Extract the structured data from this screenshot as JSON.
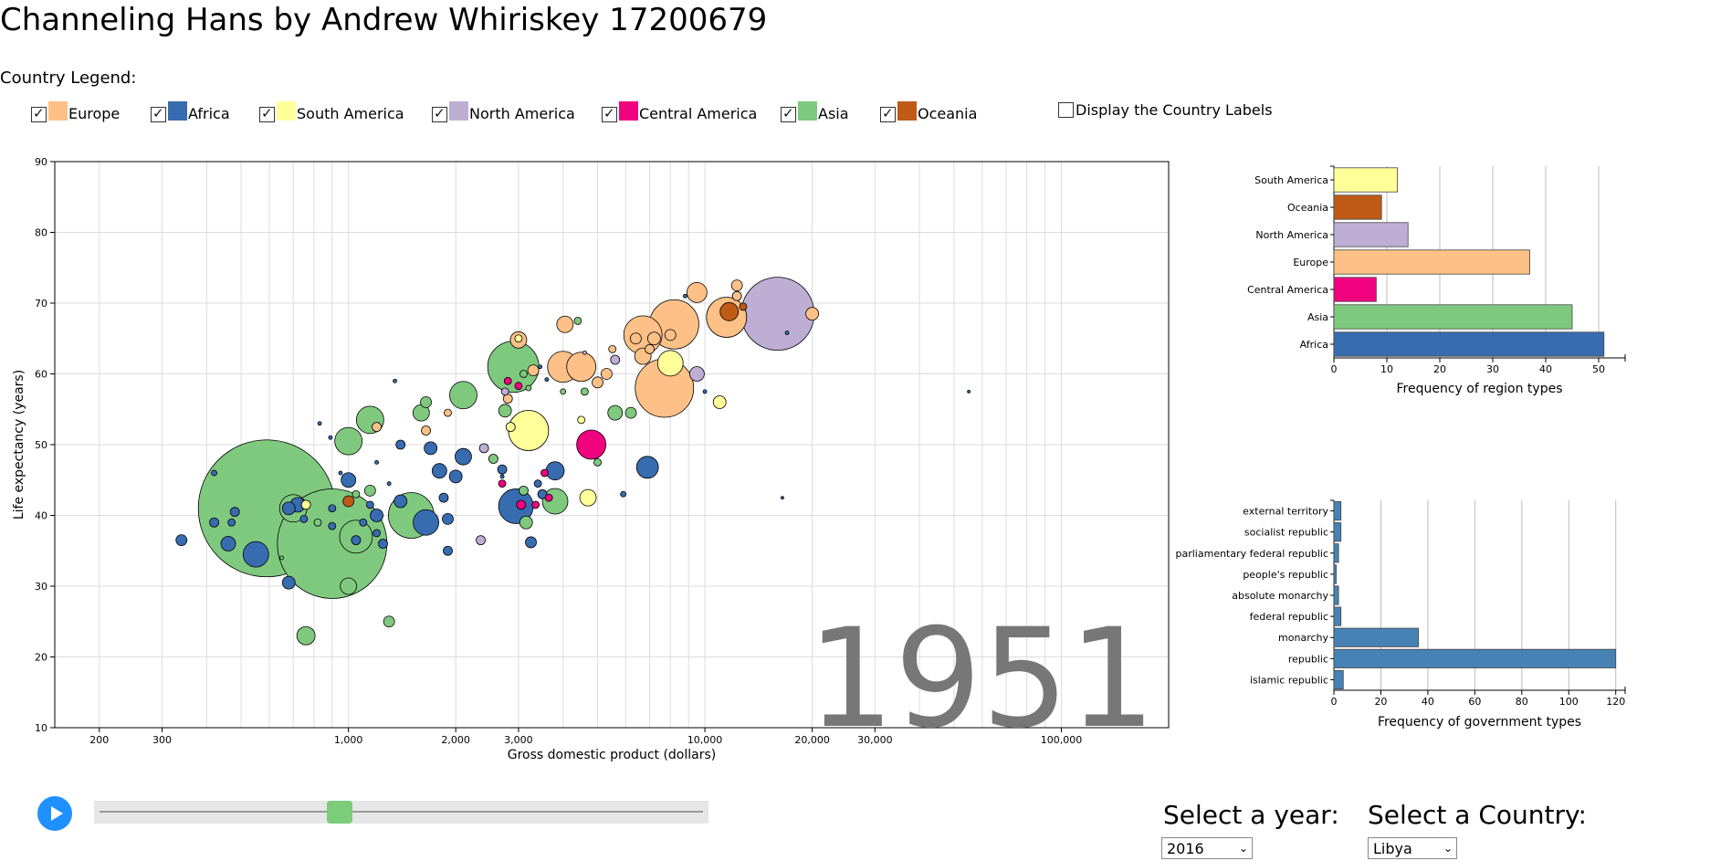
{
  "page": {
    "title": "Channeling Hans by Andrew Whiriskey 17200679",
    "legend_title": "Country Legend:",
    "labels_toggle": "Display the Country Labels",
    "labels_toggle_checked": false
  },
  "legend": [
    {
      "label": "Europe",
      "color": "#fdc086",
      "checked": true
    },
    {
      "label": "Africa",
      "color": "#386cb0",
      "checked": true
    },
    {
      "label": "South America",
      "color": "#ffff99",
      "checked": true
    },
    {
      "label": "North America",
      "color": "#beaed4",
      "checked": true
    },
    {
      "label": "Central America",
      "color": "#f0027f",
      "checked": true
    },
    {
      "label": "Asia",
      "color": "#7fc97f",
      "checked": true
    },
    {
      "label": "Oceania",
      "color": "#bf5b17",
      "checked": true
    }
  ],
  "controls": {
    "year_label": "Select a year:",
    "year_value": "2016",
    "country_label": "Select a Country:",
    "country_value": "Libya",
    "slider_position": 0.4
  },
  "chart_data": [
    {
      "type": "scatter",
      "title": "",
      "year_watermark": "1951",
      "xlabel": "Gross domestic product (dollars)",
      "ylabel": "Life expectancy (years)",
      "xscale": "log",
      "xlim": [
        150,
        200000
      ],
      "ylim": [
        10,
        90
      ],
      "xticks": [
        200,
        300,
        1000,
        2000,
        3000,
        10000,
        20000,
        30000,
        100000
      ],
      "xtick_labels": [
        "200",
        "300",
        "1,000",
        "2,000",
        "3,000",
        "10,000",
        "20,000",
        "30,000",
        "100,000"
      ],
      "yticks": [
        10,
        20,
        30,
        40,
        50,
        60,
        70,
        80,
        90
      ],
      "grid": true,
      "points": [
        {
          "x": 590,
          "y": 41,
          "r": 75,
          "region": "Asia"
        },
        {
          "x": 900,
          "y": 36,
          "r": 60,
          "region": "Asia"
        },
        {
          "x": 16000,
          "y": 68.5,
          "r": 40,
          "region": "North America"
        },
        {
          "x": 7700,
          "y": 58,
          "r": 32,
          "region": "Europe"
        },
        {
          "x": 2900,
          "y": 61,
          "r": 28,
          "region": "Asia"
        },
        {
          "x": 8200,
          "y": 67,
          "r": 27,
          "region": "Europe"
        },
        {
          "x": 1500,
          "y": 40,
          "r": 25,
          "region": "Asia"
        },
        {
          "x": 11500,
          "y": 68,
          "r": 22,
          "region": "Europe"
        },
        {
          "x": 3200,
          "y": 52,
          "r": 22,
          "region": "South America"
        },
        {
          "x": 6700,
          "y": 65.5,
          "r": 21,
          "region": "Europe"
        },
        {
          "x": 2950,
          "y": 41.3,
          "r": 19,
          "region": "Africa"
        },
        {
          "x": 4000,
          "y": 61,
          "r": 17,
          "region": "Europe"
        },
        {
          "x": 4500,
          "y": 61,
          "r": 16,
          "region": "Europe"
        },
        {
          "x": 4800,
          "y": 50,
          "r": 16,
          "region": "Central America"
        },
        {
          "x": 1050,
          "y": 37,
          "r": 18,
          "region": "Asia"
        },
        {
          "x": 1650,
          "y": 39,
          "r": 14,
          "region": "Africa"
        },
        {
          "x": 3800,
          "y": 42,
          "r": 14,
          "region": "Asia"
        },
        {
          "x": 1000,
          "y": 50.5,
          "r": 15,
          "region": "Asia"
        },
        {
          "x": 1150,
          "y": 53.5,
          "r": 15,
          "region": "Asia"
        },
        {
          "x": 2100,
          "y": 57,
          "r": 15,
          "region": "Asia"
        },
        {
          "x": 700,
          "y": 41,
          "r": 15,
          "region": "Asia"
        },
        {
          "x": 8000,
          "y": 61.5,
          "r": 14,
          "region": "South America"
        },
        {
          "x": 550,
          "y": 34.5,
          "r": 14,
          "region": "Africa"
        },
        {
          "x": 6900,
          "y": 46.8,
          "r": 12,
          "region": "Africa"
        },
        {
          "x": 9500,
          "y": 71.5,
          "r": 11,
          "region": "Europe"
        },
        {
          "x": 11700,
          "y": 68.8,
          "r": 10,
          "region": "Oceania"
        },
        {
          "x": 3000,
          "y": 64.8,
          "r": 9,
          "region": "Europe"
        },
        {
          "x": 4050,
          "y": 67,
          "r": 9,
          "region": "Europe"
        },
        {
          "x": 6700,
          "y": 62.5,
          "r": 9,
          "region": "Europe"
        },
        {
          "x": 3800,
          "y": 46.3,
          "r": 10,
          "region": "Africa"
        },
        {
          "x": 2100,
          "y": 48.3,
          "r": 9,
          "region": "Africa"
        },
        {
          "x": 1800,
          "y": 46.3,
          "r": 8,
          "region": "Africa"
        },
        {
          "x": 1000,
          "y": 30,
          "r": 9,
          "region": "Asia"
        },
        {
          "x": 760,
          "y": 23,
          "r": 10,
          "region": "Asia"
        },
        {
          "x": 460,
          "y": 36,
          "r": 8,
          "region": "Africa"
        },
        {
          "x": 9500,
          "y": 60,
          "r": 8,
          "region": "North America"
        },
        {
          "x": 20000,
          "y": 68.5,
          "r": 7,
          "region": "Europe"
        },
        {
          "x": 4700,
          "y": 42.5,
          "r": 9,
          "region": "South America"
        },
        {
          "x": 11000,
          "y": 56,
          "r": 7,
          "region": "South America"
        },
        {
          "x": 5600,
          "y": 54.5,
          "r": 8,
          "region": "Asia"
        },
        {
          "x": 2750,
          "y": 54.8,
          "r": 7,
          "region": "Asia"
        },
        {
          "x": 3150,
          "y": 39,
          "r": 7,
          "region": "Asia"
        },
        {
          "x": 3250,
          "y": 36.2,
          "r": 6,
          "region": "Africa"
        },
        {
          "x": 1400,
          "y": 42,
          "r": 7,
          "region": "Africa"
        },
        {
          "x": 1000,
          "y": 45,
          "r": 8,
          "region": "Africa"
        },
        {
          "x": 1200,
          "y": 40,
          "r": 7,
          "region": "Africa"
        },
        {
          "x": 1700,
          "y": 49.5,
          "r": 7,
          "region": "Africa"
        },
        {
          "x": 2000,
          "y": 45.5,
          "r": 7,
          "region": "Africa"
        },
        {
          "x": 340,
          "y": 36.5,
          "r": 6,
          "region": "Africa"
        },
        {
          "x": 680,
          "y": 30.5,
          "r": 7,
          "region": "Africa"
        },
        {
          "x": 1300,
          "y": 25,
          "r": 6,
          "region": "Asia"
        },
        {
          "x": 2350,
          "y": 36.5,
          "r": 5,
          "region": "North America"
        },
        {
          "x": 2550,
          "y": 48,
          "r": 5,
          "region": "Asia"
        },
        {
          "x": 1400,
          "y": 50,
          "r": 5,
          "region": "Africa"
        },
        {
          "x": 1900,
          "y": 39.5,
          "r": 6,
          "region": "Africa"
        },
        {
          "x": 1850,
          "y": 42.5,
          "r": 5,
          "region": "Africa"
        },
        {
          "x": 1150,
          "y": 43.5,
          "r": 6,
          "region": "Asia"
        },
        {
          "x": 1900,
          "y": 35,
          "r": 5,
          "region": "Africa"
        },
        {
          "x": 2700,
          "y": 46.5,
          "r": 5,
          "region": "Africa"
        },
        {
          "x": 2850,
          "y": 52.5,
          "r": 5,
          "region": "South America"
        },
        {
          "x": 3300,
          "y": 60.5,
          "r": 6,
          "region": "Europe"
        },
        {
          "x": 5000,
          "y": 58.8,
          "r": 6,
          "region": "Europe"
        },
        {
          "x": 5300,
          "y": 60,
          "r": 6,
          "region": "Europe"
        },
        {
          "x": 5600,
          "y": 62,
          "r": 5,
          "region": "North America"
        },
        {
          "x": 6200,
          "y": 54.5,
          "r": 6,
          "region": "Asia"
        },
        {
          "x": 2400,
          "y": 49.5,
          "r": 5,
          "region": "North America"
        },
        {
          "x": 1600,
          "y": 54.5,
          "r": 9,
          "region": "Asia"
        },
        {
          "x": 1650,
          "y": 56,
          "r": 6,
          "region": "Asia"
        },
        {
          "x": 1900,
          "y": 54.5,
          "r": 4,
          "region": "Europe"
        },
        {
          "x": 1200,
          "y": 52.5,
          "r": 5,
          "region": "Europe"
        },
        {
          "x": 1650,
          "y": 52,
          "r": 5,
          "region": "Europe"
        },
        {
          "x": 2800,
          "y": 56.5,
          "r": 5,
          "region": "Europe"
        },
        {
          "x": 3100,
          "y": 43.5,
          "r": 5,
          "region": "Asia"
        },
        {
          "x": 3500,
          "y": 43,
          "r": 5,
          "region": "Africa"
        },
        {
          "x": 3650,
          "y": 42.5,
          "r": 4,
          "region": "Central America"
        },
        {
          "x": 3400,
          "y": 44.5,
          "r": 4,
          "region": "Africa"
        },
        {
          "x": 3550,
          "y": 46,
          "r": 4,
          "region": "Central America"
        },
        {
          "x": 3350,
          "y": 41.5,
          "r": 4,
          "region": "Central America"
        },
        {
          "x": 3050,
          "y": 41.5,
          "r": 5,
          "region": "Central America"
        },
        {
          "x": 3000,
          "y": 58.3,
          "r": 4,
          "region": "Central America"
        },
        {
          "x": 2800,
          "y": 59,
          "r": 4,
          "region": "Central America"
        },
        {
          "x": 2750,
          "y": 57.5,
          "r": 4,
          "region": "North America"
        },
        {
          "x": 2700,
          "y": 44.5,
          "r": 4,
          "region": "Central America"
        },
        {
          "x": 3000,
          "y": 65,
          "r": 4,
          "region": "South America"
        },
        {
          "x": 3100,
          "y": 60,
          "r": 4,
          "region": "Asia"
        },
        {
          "x": 3200,
          "y": 58,
          "r": 3,
          "region": "Asia"
        },
        {
          "x": 4600,
          "y": 57.5,
          "r": 4,
          "region": "Asia"
        },
        {
          "x": 4500,
          "y": 53.5,
          "r": 4,
          "region": "South America"
        },
        {
          "x": 5000,
          "y": 47.5,
          "r": 4,
          "region": "Asia"
        },
        {
          "x": 5500,
          "y": 63.5,
          "r": 4,
          "region": "Europe"
        },
        {
          "x": 4400,
          "y": 67.5,
          "r": 4,
          "region": "Asia"
        },
        {
          "x": 4000,
          "y": 57.5,
          "r": 3,
          "region": "Asia"
        },
        {
          "x": 5900,
          "y": 43,
          "r": 3,
          "region": "Africa"
        },
        {
          "x": 1000,
          "y": 42,
          "r": 6,
          "region": "Oceania"
        },
        {
          "x": 900,
          "y": 41,
          "r": 4,
          "region": "Africa"
        },
        {
          "x": 820,
          "y": 39,
          "r": 4,
          "region": "Asia"
        },
        {
          "x": 760,
          "y": 41.5,
          "r": 5,
          "region": "South America"
        },
        {
          "x": 680,
          "y": 41,
          "r": 7,
          "region": "Africa"
        },
        {
          "x": 720,
          "y": 41.5,
          "r": 8,
          "region": "Africa"
        },
        {
          "x": 470,
          "y": 39,
          "r": 4,
          "region": "Africa"
        },
        {
          "x": 480,
          "y": 40.5,
          "r": 5,
          "region": "Africa"
        },
        {
          "x": 420,
          "y": 39,
          "r": 5,
          "region": "Africa"
        },
        {
          "x": 750,
          "y": 39.5,
          "r": 4,
          "region": "Africa"
        },
        {
          "x": 900,
          "y": 38.5,
          "r": 4,
          "region": "Africa"
        },
        {
          "x": 1100,
          "y": 39,
          "r": 4,
          "region": "Africa"
        },
        {
          "x": 1200,
          "y": 37.5,
          "r": 4,
          "region": "Africa"
        },
        {
          "x": 1250,
          "y": 36,
          "r": 5,
          "region": "Africa"
        },
        {
          "x": 1050,
          "y": 36.5,
          "r": 5,
          "region": "Africa"
        },
        {
          "x": 1150,
          "y": 41.5,
          "r": 4,
          "region": "Africa"
        },
        {
          "x": 1050,
          "y": 43,
          "r": 4,
          "region": "Asia"
        },
        {
          "x": 650,
          "y": 34,
          "r": 2,
          "region": "Asia"
        },
        {
          "x": 420,
          "y": 46,
          "r": 3,
          "region": "Africa"
        },
        {
          "x": 830,
          "y": 53,
          "r": 2,
          "region": "Africa"
        },
        {
          "x": 890,
          "y": 51,
          "r": 2,
          "region": "Africa"
        },
        {
          "x": 950,
          "y": 46,
          "r": 2,
          "region": "Africa"
        },
        {
          "x": 1200,
          "y": 47.5,
          "r": 2,
          "region": "Africa"
        },
        {
          "x": 1300,
          "y": 44.5,
          "r": 2,
          "region": "Africa"
        },
        {
          "x": 1350,
          "y": 59,
          "r": 2,
          "region": "Africa"
        },
        {
          "x": 2700,
          "y": 45.5,
          "r": 2,
          "region": "Africa"
        },
        {
          "x": 4600,
          "y": 63,
          "r": 2,
          "region": "North America"
        },
        {
          "x": 3450,
          "y": 61,
          "r": 2,
          "region": "Africa"
        },
        {
          "x": 3600,
          "y": 59.2,
          "r": 2,
          "region": "Africa"
        },
        {
          "x": 8800,
          "y": 71,
          "r": 2,
          "region": "Africa"
        },
        {
          "x": 10000,
          "y": 57.5,
          "r": 2,
          "region": "Africa"
        },
        {
          "x": 12300,
          "y": 72.5,
          "r": 6,
          "region": "Europe"
        },
        {
          "x": 12300,
          "y": 71,
          "r": 5,
          "region": "Europe"
        },
        {
          "x": 12800,
          "y": 69.5,
          "r": 4,
          "region": "Oceania"
        },
        {
          "x": 17000,
          "y": 65.8,
          "r": 2,
          "region": "Africa"
        },
        {
          "x": 16500,
          "y": 42.5,
          "r": 1.5,
          "region": "Africa"
        },
        {
          "x": 55000,
          "y": 57.5,
          "r": 1.5,
          "region": "Africa"
        },
        {
          "x": 8000,
          "y": 65.5,
          "r": 6,
          "region": "Europe"
        },
        {
          "x": 6400,
          "y": 65,
          "r": 6,
          "region": "Europe"
        },
        {
          "x": 7200,
          "y": 65,
          "r": 7,
          "region": "Europe"
        },
        {
          "x": 7000,
          "y": 63.5,
          "r": 5,
          "region": "Europe"
        }
      ]
    },
    {
      "type": "bar",
      "orientation": "horizontal",
      "title": "",
      "xlabel": "Frequency of region types",
      "ylabel": "",
      "xlim": [
        0,
        55
      ],
      "xticks": [
        0,
        10,
        20,
        30,
        40,
        50
      ],
      "categories": [
        "South America",
        "Oceania",
        "North America",
        "Europe",
        "Central America",
        "Asia",
        "Africa"
      ],
      "values": [
        12,
        9,
        14,
        37,
        8,
        45,
        51
      ],
      "colors": [
        "#ffff99",
        "#bf5b17",
        "#beaed4",
        "#fdc086",
        "#f0027f",
        "#7fc97f",
        "#386cb0"
      ],
      "grid": true
    },
    {
      "type": "bar",
      "orientation": "horizontal",
      "title": "",
      "xlabel": "Frequency of government types",
      "ylabel": "",
      "xlim": [
        0,
        124
      ],
      "xticks": [
        0,
        20,
        40,
        60,
        80,
        100,
        120
      ],
      "categories": [
        "external territory",
        "socialist republic",
        "parliamentary federal republic",
        "people's republic",
        "absolute monarchy",
        "federal republic",
        "monarchy",
        "republic",
        "islamic republic"
      ],
      "values": [
        3,
        3,
        2,
        1,
        2,
        3,
        36,
        120,
        4
      ],
      "colors": [
        "#4682b4"
      ],
      "grid": true
    }
  ]
}
